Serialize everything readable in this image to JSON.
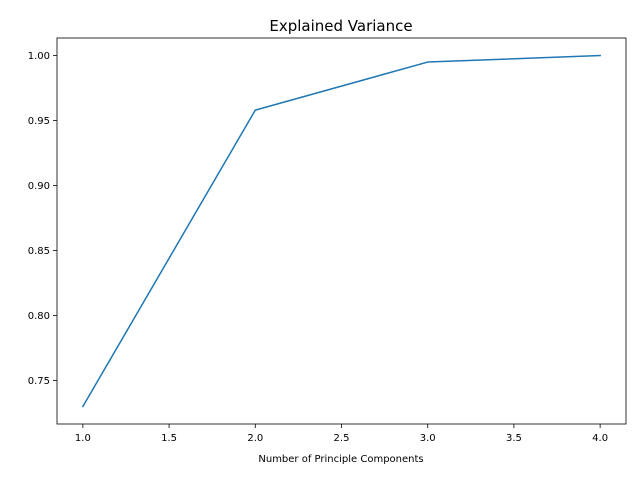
{
  "chart_data": {
    "type": "line",
    "title": "Explained Variance",
    "xlabel": "Number of Principle Components",
    "ylabel": "",
    "x": [
      1.0,
      2.0,
      3.0,
      4.0
    ],
    "series": [
      {
        "values": [
          0.73,
          0.958,
          0.995,
          1.0
        ],
        "color": "#1f77b4"
      }
    ],
    "xlim": [
      0.85,
      4.15
    ],
    "ylim": [
      0.7165,
      1.0135
    ],
    "xticks": [
      1.0,
      1.5,
      2.0,
      2.5,
      3.0,
      3.5,
      4.0
    ],
    "xtick_labels": [
      "1.0",
      "1.5",
      "2.0",
      "2.5",
      "3.0",
      "3.5",
      "4.0"
    ],
    "yticks": [
      0.75,
      0.8,
      0.85,
      0.9,
      0.95,
      1.0
    ],
    "ytick_labels": [
      "0.75",
      "0.80",
      "0.85",
      "0.90",
      "0.95",
      "1.00"
    ],
    "grid": false,
    "legend": "none"
  }
}
